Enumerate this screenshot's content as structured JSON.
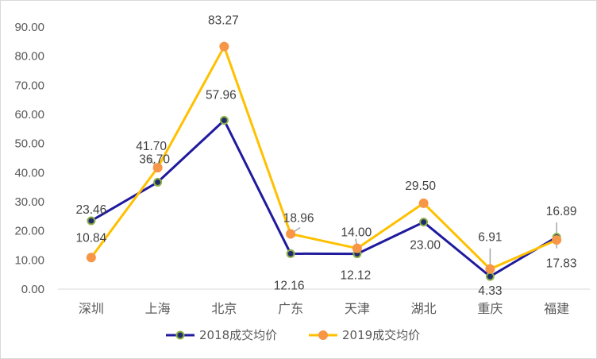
{
  "chart_data": {
    "type": "line",
    "title": "",
    "xlabel": "",
    "ylabel": "",
    "ylim": [
      0,
      90
    ],
    "ytick_step": 10,
    "ytick_labels": [
      "0.00",
      "10.00",
      "20.00",
      "30.00",
      "40.00",
      "50.00",
      "60.00",
      "70.00",
      "80.00",
      "90.00"
    ],
    "grid": false,
    "legend_position": "bottom",
    "categories": [
      "深圳",
      "上海",
      "北京",
      "广东",
      "天津",
      "湖北",
      "重庆",
      "福建"
    ],
    "series": [
      {
        "name": "2018成交均价",
        "line_color": "#1f1a9e",
        "marker_fill": "#1f2d6b",
        "marker_edge": "#8fb04a",
        "values": [
          23.46,
          36.7,
          57.96,
          12.16,
          12.12,
          23.0,
          4.33,
          17.83
        ],
        "labels": [
          "23.46",
          "36.70",
          "57.96",
          "12.16",
          "12.12",
          "23.00",
          "4.33",
          "17.83"
        ]
      },
      {
        "name": "2019成交均价",
        "line_color": "#ffc000",
        "marker_fill": "#f79646",
        "marker_edge": "#f79646",
        "values": [
          10.84,
          41.7,
          83.27,
          18.96,
          14.0,
          29.5,
          6.91,
          16.89
        ],
        "labels": [
          "10.84",
          "41.70",
          "83.27",
          "18.96",
          "14.00",
          "29.50",
          "6.91",
          "16.89"
        ]
      }
    ]
  }
}
